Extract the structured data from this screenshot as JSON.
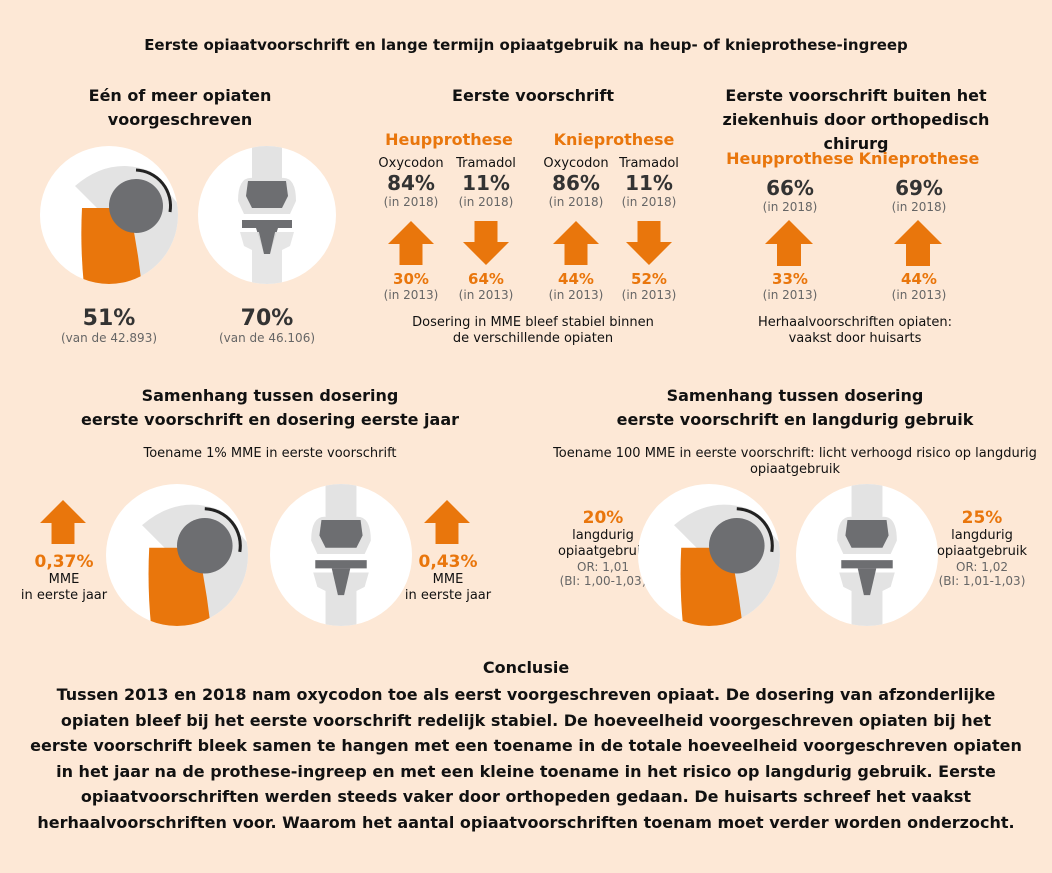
{
  "title": "Eerste opiaatvoorschrift en lange termijn opiaatgebruik na heup- of knieprothese-ingreep",
  "colors": {
    "accent": "#e9760c",
    "background": "#fde8d6",
    "bone": "#e6e6e6",
    "implant": "#6d6e71"
  },
  "section1": {
    "heading_line1": "Eén of meer opiaten",
    "heading_line2": "voorgeschreven",
    "hip_value": "51%",
    "hip_sub": "(van de 42.893)",
    "knee_value": "70%",
    "knee_sub": "(van de 46.106)"
  },
  "section2": {
    "heading": "Eerste voorschrift",
    "hip_label": "Heupprothese",
    "knee_label": "Knieprothese",
    "cols": [
      {
        "drug": "Oxycodon",
        "value_2018": "84%",
        "year_2018": "(in 2018)",
        "dir": "up",
        "value_2013": "30%",
        "year_2013": "(in 2013)"
      },
      {
        "drug": "Tramadol",
        "value_2018": "11%",
        "year_2018": "(in 2018)",
        "dir": "down",
        "value_2013": "64%",
        "year_2013": "(in 2013)"
      },
      {
        "drug": "Oxycodon",
        "value_2018": "86%",
        "year_2018": "(in 2018)",
        "dir": "up",
        "value_2013": "44%",
        "year_2013": "(in 2013)"
      },
      {
        "drug": "Tramadol",
        "value_2018": "11%",
        "year_2018": "(in 2018)",
        "dir": "down",
        "value_2013": "52%",
        "year_2013": "(in 2013)"
      }
    ],
    "note_line1": "Dosering in MME bleef stabiel binnen",
    "note_line2": "de verschillende opiaten"
  },
  "section3": {
    "heading_line1": "Eerste voorschrift buiten het",
    "heading_line2": "ziekenhuis door orthopedisch chirurg",
    "hip_label": "Heupprothese",
    "knee_label": "Knieprothese",
    "hip_2018": "66%",
    "hip_2018_year": "(in 2018)",
    "hip_2013": "33%",
    "hip_2013_year": "(in 2013)",
    "knee_2018": "69%",
    "knee_2018_year": "(in 2018)",
    "knee_2013": "44%",
    "knee_2013_year": "(in 2013)",
    "note_line1": "Herhaalvoorschriften opiaten:",
    "note_line2": "vaakst door huisarts"
  },
  "section4": {
    "heading_line1": "Samenhang tussen dosering",
    "heading_line2": "eerste voorschrift en dosering eerste jaar",
    "subtitle": "Toename 1% MME in eerste voorschrift",
    "hip_value": "0,37%",
    "hip_unit": "MME",
    "hip_desc": "in eerste jaar",
    "knee_value": "0,43%",
    "knee_unit": "MME",
    "knee_desc": "in eerste jaar"
  },
  "section5": {
    "heading_line1": "Samenhang tussen dosering",
    "heading_line2": "eerste voorschrift en langdurig gebruik",
    "subtitle_line1": "Toename 100 MME in eerste voorschrift: licht verhoogd risico op langdurig",
    "subtitle_line2": "opiaatgebruik",
    "hip_value": "20%",
    "hip_desc1": "langdurig",
    "hip_desc2": "opiaatgebruik",
    "hip_or": "OR: 1,01",
    "hip_ci": "(BI: 1,00-1,03)",
    "knee_value": "25%",
    "knee_desc1": "langdurig",
    "knee_desc2": "opiaatgebruik",
    "knee_or": "OR: 1,02",
    "knee_ci": "(BI: 1,01-1,03)"
  },
  "conclusion": {
    "title": "Conclusie",
    "body": "Tussen 2013 en 2018 nam oxycodon toe als eerst voorgeschreven opiaat. De dosering van afzonderlijke opiaten bleef bij het eerste voorschrift redelijk stabiel. De hoeveelheid voorgeschreven opiaten bij het eerste voorschrift bleek samen te hangen met een toename in de totale hoeveelheid voorgeschreven opiaten in het jaar na de prothese-ingreep en met een kleine toename in het risico op langdurig gebruik. Eerste opiaatvoorschriften werden steeds vaker door orthopeden gedaan. De huisarts schreef het vaakst herhaalvoorschriften voor. Waarom het aantal opiaatvoorschriften toenam moet verder worden onderzocht."
  }
}
